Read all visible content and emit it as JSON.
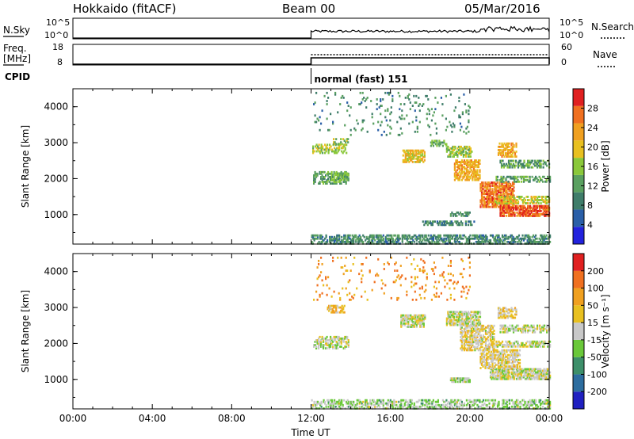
{
  "header": {
    "radar": "Hokkaido (fitACF)",
    "beam": "Beam 00",
    "date": "05/Mar/2016"
  },
  "strip_labels": {
    "nsky": "N.Sky",
    "nsky_ticks": [
      "10^5",
      "10^0"
    ],
    "nsearch": "N.Search",
    "nsearch_ticks": [
      "10^5",
      "10^0"
    ],
    "freq_line1": "Freq.",
    "freq_line2": "[MHz]",
    "freq_ticks": [
      "18",
      "8"
    ],
    "nave": "Nave",
    "nave_ticks": [
      "60",
      "0"
    ],
    "cpid": "CPID",
    "cpid_name": "normal (fast) 151"
  },
  "x_axis": {
    "label": "Time UT",
    "ticks": [
      "00:00",
      "04:00",
      "08:00",
      "12:00",
      "16:00",
      "20:00",
      "00:00"
    ],
    "range_hours": [
      0,
      24
    ]
  },
  "colors": {
    "power_scale": [
      "#2222dd",
      "#2a5fa8",
      "#3f7d6a",
      "#5aa060",
      "#8ac83a",
      "#e8c020",
      "#f0a020",
      "#f07020",
      "#e02020"
    ],
    "velocity_scale": [
      "#2020c0",
      "#2d6d9f",
      "#3d8f6a",
      "#6ac83a",
      "#c8c8c8",
      "#e8c020",
      "#f0a020",
      "#f07020",
      "#e02020"
    ]
  },
  "chart_data": [
    {
      "type": "heatmap",
      "panel": "power",
      "ylabel": "Slant Range [km]",
      "y_ticks": [
        "4000",
        "3000",
        "2000",
        "1000"
      ],
      "ylim": [
        180,
        4500
      ],
      "colorbar_label": "Power [dB]",
      "colorbar_ticks": [
        "28",
        "24",
        "20",
        "16",
        "12",
        "8",
        "4"
      ],
      "colorbar_range": [
        0,
        32
      ],
      "echo_regions": [
        {
          "t_start": 12.0,
          "t_end": 24.0,
          "range_start": 180,
          "range_end": 450,
          "value": 10,
          "density": 0.55
        },
        {
          "t_start": 12.1,
          "t_end": 13.9,
          "range_start": 1850,
          "range_end": 2200,
          "value": 12,
          "density": 0.5
        },
        {
          "t_start": 12.0,
          "t_end": 13.8,
          "range_start": 2700,
          "range_end": 2950,
          "value": 16,
          "density": 0.45
        },
        {
          "t_start": 13.1,
          "t_end": 13.9,
          "range_start": 2950,
          "range_end": 3100,
          "value": 16,
          "density": 0.4
        },
        {
          "t_start": 13.0,
          "t_end": 13.9,
          "range_start": 1950,
          "range_end": 2150,
          "value": 14,
          "density": 0.6
        },
        {
          "t_start": 16.6,
          "t_end": 17.7,
          "range_start": 2450,
          "range_end": 2800,
          "value": 20,
          "density": 0.65
        },
        {
          "t_start": 18.0,
          "t_end": 18.8,
          "range_start": 2900,
          "range_end": 3050,
          "value": 14,
          "density": 0.4
        },
        {
          "t_start": 18.8,
          "t_end": 20.1,
          "range_start": 2600,
          "range_end": 2900,
          "value": 16,
          "density": 0.6
        },
        {
          "t_start": 19.2,
          "t_end": 20.5,
          "range_start": 1950,
          "range_end": 2500,
          "value": 22,
          "density": 0.6
        },
        {
          "t_start": 20.5,
          "t_end": 22.2,
          "range_start": 1200,
          "range_end": 1900,
          "value": 26,
          "density": 0.7
        },
        {
          "t_start": 21.5,
          "t_end": 24.0,
          "range_start": 950,
          "range_end": 1250,
          "value": 28,
          "density": 0.75
        },
        {
          "t_start": 21.2,
          "t_end": 24.0,
          "range_start": 1300,
          "range_end": 1500,
          "value": 18,
          "density": 0.45
        },
        {
          "t_start": 21.3,
          "t_end": 24.0,
          "range_start": 1900,
          "range_end": 2050,
          "value": 12,
          "density": 0.5
        },
        {
          "t_start": 21.5,
          "t_end": 24.0,
          "range_start": 2300,
          "range_end": 2500,
          "value": 12,
          "density": 0.5
        },
        {
          "t_start": 21.4,
          "t_end": 22.3,
          "range_start": 2600,
          "range_end": 3000,
          "value": 22,
          "density": 0.55
        },
        {
          "t_start": 19.0,
          "t_end": 20.0,
          "range_start": 950,
          "range_end": 1050,
          "value": 10,
          "density": 0.6
        },
        {
          "t_start": 17.6,
          "t_end": 20.2,
          "range_start": 700,
          "range_end": 800,
          "value": 10,
          "density": 0.4
        },
        {
          "t_start": 12.1,
          "t_end": 20.0,
          "range_start": 3200,
          "range_end": 4400,
          "value": 10,
          "density": 0.05
        }
      ]
    },
    {
      "type": "heatmap",
      "panel": "velocity",
      "ylabel": "Slant Range [km]",
      "y_ticks": [
        "4000",
        "3000",
        "2000",
        "1000"
      ],
      "ylim": [
        180,
        4500
      ],
      "colorbar_label": "Velocity [m s^-1]",
      "colorbar_ticks": [
        "200",
        "100",
        "50",
        "15",
        "-15",
        "-50",
        "-100",
        "-200"
      ],
      "colorbar_range": [
        -250,
        250
      ],
      "echo_regions": [
        {
          "t_start": 12.0,
          "t_end": 24.0,
          "range_start": 180,
          "range_end": 450,
          "value": -30,
          "density": 0.45
        },
        {
          "t_start": 12.1,
          "t_end": 13.9,
          "range_start": 1850,
          "range_end": 2200,
          "value": 0,
          "density": 0.55
        },
        {
          "t_start": 12.8,
          "t_end": 13.7,
          "range_start": 2850,
          "range_end": 3050,
          "value": 70,
          "density": 0.6
        },
        {
          "t_start": 16.5,
          "t_end": 17.7,
          "range_start": 2450,
          "range_end": 2800,
          "value": 0,
          "density": 0.7
        },
        {
          "t_start": 18.8,
          "t_end": 20.5,
          "range_start": 2500,
          "range_end": 2900,
          "value": 0,
          "density": 0.7
        },
        {
          "t_start": 19.5,
          "t_end": 21.2,
          "range_start": 1800,
          "range_end": 2500,
          "value": 30,
          "density": 0.6
        },
        {
          "t_start": 21.0,
          "t_end": 24.0,
          "range_start": 1000,
          "range_end": 1300,
          "value": 0,
          "density": 0.75
        },
        {
          "t_start": 20.5,
          "t_end": 22.5,
          "range_start": 1300,
          "range_end": 1800,
          "value": 30,
          "density": 0.6
        },
        {
          "t_start": 21.3,
          "t_end": 24.0,
          "range_start": 1900,
          "range_end": 2050,
          "value": 0,
          "density": 0.55
        },
        {
          "t_start": 21.5,
          "t_end": 24.0,
          "range_start": 2300,
          "range_end": 2500,
          "value": 0,
          "density": 0.5
        },
        {
          "t_start": 21.4,
          "t_end": 22.3,
          "range_start": 2700,
          "range_end": 3000,
          "value": 40,
          "density": 0.5
        },
        {
          "t_start": 19.0,
          "t_end": 20.0,
          "range_start": 920,
          "range_end": 1050,
          "value": -30,
          "density": 0.8
        },
        {
          "t_start": 12.1,
          "t_end": 20.0,
          "range_start": 3200,
          "range_end": 4400,
          "value": 120,
          "density": 0.05
        }
      ]
    }
  ]
}
